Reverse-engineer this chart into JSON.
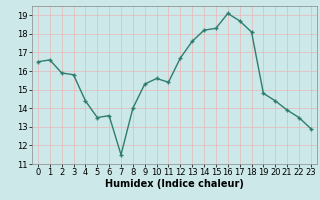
{
  "x": [
    0,
    1,
    2,
    3,
    4,
    5,
    6,
    7,
    8,
    9,
    10,
    11,
    12,
    13,
    14,
    15,
    16,
    17,
    18,
    19,
    20,
    21,
    22,
    23
  ],
  "y": [
    16.5,
    16.6,
    15.9,
    15.8,
    14.4,
    13.5,
    13.6,
    11.5,
    14.0,
    15.3,
    15.6,
    15.4,
    16.7,
    17.6,
    18.2,
    18.3,
    19.1,
    18.7,
    18.1,
    14.8,
    14.4,
    13.9,
    13.5,
    12.9
  ],
  "xlabel": "Humidex (Indice chaleur)",
  "ylim": [
    11,
    19.5
  ],
  "xlim": [
    -0.5,
    23.5
  ],
  "yticks": [
    11,
    12,
    13,
    14,
    15,
    16,
    17,
    18,
    19
  ],
  "xticks": [
    0,
    1,
    2,
    3,
    4,
    5,
    6,
    7,
    8,
    9,
    10,
    11,
    12,
    13,
    14,
    15,
    16,
    17,
    18,
    19,
    20,
    21,
    22,
    23
  ],
  "line_color": "#2d7d6e",
  "marker": "+",
  "bg_color": "#cce8e8",
  "grid_color": "#e8b8b8",
  "xlabel_fontsize": 7,
  "tick_fontsize": 6
}
